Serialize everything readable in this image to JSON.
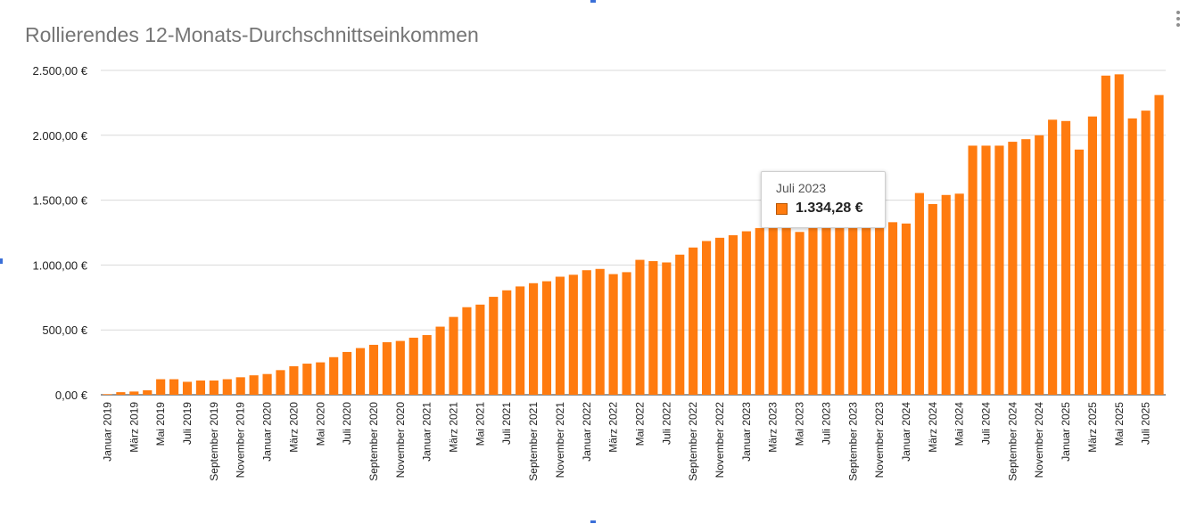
{
  "chart_data": {
    "type": "bar",
    "title": "Rollierendes 12-Monats-Durchschnittseinkommen",
    "xlabel": "",
    "ylabel": "",
    "ylim": [
      0,
      2500
    ],
    "yticks": [
      0,
      500,
      1000,
      1500,
      2000,
      2500
    ],
    "ytick_labels": [
      "0,00 €",
      "500,00 €",
      "1.000,00 €",
      "1.500,00 €",
      "2.000,00 €",
      "2.500,00 €"
    ],
    "grid": true,
    "color": "#ff7b0f",
    "categories": [
      "Januar 2019",
      "Februar 2019",
      "März 2019",
      "April 2019",
      "Mai 2019",
      "Juni 2019",
      "Juli 2019",
      "August 2019",
      "September 2019",
      "Oktober 2019",
      "November 2019",
      "Dezember 2019",
      "Januar 2020",
      "Februar 2020",
      "März 2020",
      "April 2020",
      "Mai 2020",
      "Juni 2020",
      "Juli 2020",
      "August 2020",
      "September 2020",
      "Oktober 2020",
      "November 2020",
      "Dezember 2020",
      "Januar 2021",
      "Februar 2021",
      "März 2021",
      "April 2021",
      "Mai 2021",
      "Juni 2021",
      "Juli 2021",
      "August 2021",
      "September 2021",
      "Oktober 2021",
      "November 2021",
      "Dezember 2021",
      "Januar 2022",
      "Februar 2022",
      "März 2022",
      "April 2022",
      "Mai 2022",
      "Juni 2022",
      "Juli 2022",
      "August 2022",
      "September 2022",
      "Oktober 2022",
      "November 2022",
      "Dezember 2022",
      "Januar 2023",
      "Februar 2023",
      "März 2023",
      "April 2023",
      "Mai 2023",
      "Juni 2023",
      "Juli 2023",
      "August 2023",
      "September 2023",
      "Oktober 2023",
      "November 2023",
      "Dezember 2023",
      "Januar 2024",
      "Februar 2024",
      "März 2024",
      "April 2024",
      "Mai 2024",
      "Juni 2024",
      "Juli 2024",
      "August 2024",
      "September 2024",
      "Oktober 2024",
      "November 2024",
      "Dezember 2024",
      "Januar 2025",
      "Februar 2025",
      "März 2025",
      "April 2025",
      "Mai 2025",
      "Juni 2025",
      "Juli 2025",
      "August 2025"
    ],
    "shown_tick_labels": [
      "Januar 2019",
      "März 2019",
      "Mai 2019",
      "Juli 2019",
      "September 2019",
      "November 2019",
      "Januar 2020",
      "März 2020",
      "Mai 2020",
      "Juli 2020",
      "September 2020",
      "November 2020",
      "Januar 2021",
      "März 2021",
      "Mai 2021",
      "Juli 2021",
      "September 2021",
      "November 2021",
      "Januar 2022",
      "März 2022",
      "Mai 2022",
      "Juli 2022",
      "September 2022",
      "November 2022",
      "Januar 2023",
      "März 2023",
      "Mai 2023",
      "Juli 2023",
      "September 2023",
      "November 2023",
      "Januar 2024",
      "März 2024",
      "Mai 2024",
      "Juli 2024",
      "September 2024",
      "November 2024",
      "Januar 2025",
      "März 2025",
      "Mai 2025",
      "Juli 2025"
    ],
    "values": [
      5,
      20,
      25,
      35,
      120,
      120,
      100,
      110,
      110,
      120,
      135,
      150,
      160,
      190,
      220,
      240,
      250,
      290,
      330,
      360,
      385,
      405,
      415,
      440,
      460,
      525,
      600,
      675,
      695,
      755,
      805,
      835,
      860,
      875,
      910,
      925,
      960,
      970,
      930,
      945,
      1040,
      1030,
      1020,
      1080,
      1135,
      1185,
      1210,
      1230,
      1260,
      1285,
      1310,
      1305,
      1255,
      1310,
      1334.28,
      1310,
      1300,
      1290,
      1310,
      1330,
      1320,
      1555,
      1470,
      1540,
      1550,
      1920,
      1920,
      1920,
      1950,
      1970,
      2000,
      2120,
      2110,
      1890,
      2145,
      2460,
      2470,
      2130,
      2190,
      2310
    ]
  },
  "tooltip": {
    "label": "Juli 2023",
    "value": "1.334,28 €"
  }
}
